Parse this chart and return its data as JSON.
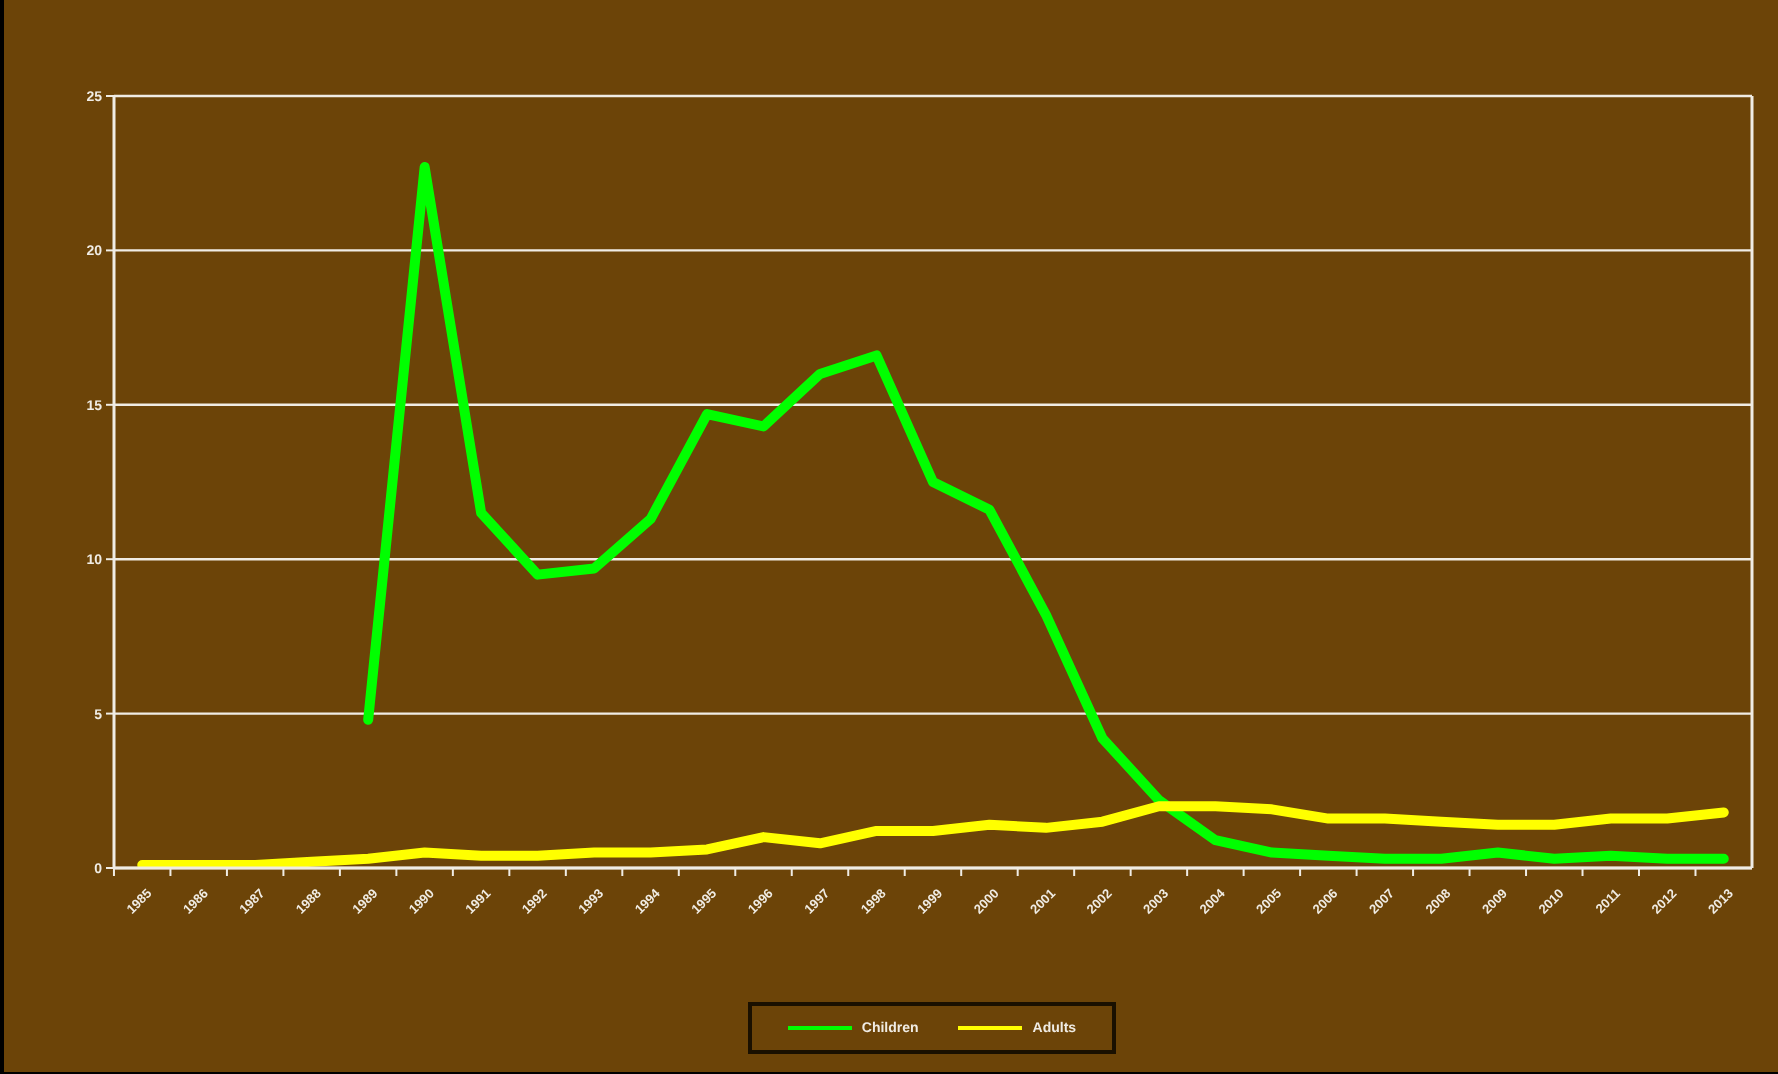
{
  "chart_data": {
    "type": "line",
    "categories": [
      "1985",
      "1986",
      "1987",
      "1988",
      "1989",
      "1990",
      "1991",
      "1992",
      "1993",
      "1994",
      "1995",
      "1996",
      "1997",
      "1998",
      "1999",
      "2000",
      "2001",
      "2002",
      "2003",
      "2004",
      "2005",
      "2006",
      "2007",
      "2008",
      "2009",
      "2010",
      "2011",
      "2012",
      "2013"
    ],
    "series": [
      {
        "name": "Children",
        "color": "#00ff00",
        "values": [
          null,
          null,
          null,
          null,
          4.8,
          22.7,
          11.5,
          9.5,
          9.7,
          11.3,
          14.7,
          14.3,
          16.0,
          16.6,
          12.5,
          11.6,
          8.2,
          4.2,
          2.2,
          0.9,
          0.5,
          0.4,
          0.3,
          0.3,
          0.5,
          0.3,
          0.4,
          0.3,
          0.3
        ]
      },
      {
        "name": "Adults",
        "color": "#ffff00",
        "values": [
          0.1,
          0.1,
          0.1,
          0.2,
          0.3,
          0.5,
          0.4,
          0.4,
          0.5,
          0.5,
          0.6,
          1.0,
          0.8,
          1.2,
          1.2,
          1.4,
          1.3,
          1.5,
          2.0,
          2.0,
          1.9,
          1.6,
          1.6,
          1.5,
          1.4,
          1.4,
          1.6,
          1.6,
          1.8
        ]
      }
    ],
    "ylim": [
      0,
      25
    ],
    "yticks": [
      0,
      5,
      10,
      15,
      20,
      25
    ],
    "grid": "y",
    "legend": "bottom",
    "marker": "none",
    "line_style": "solid"
  }
}
